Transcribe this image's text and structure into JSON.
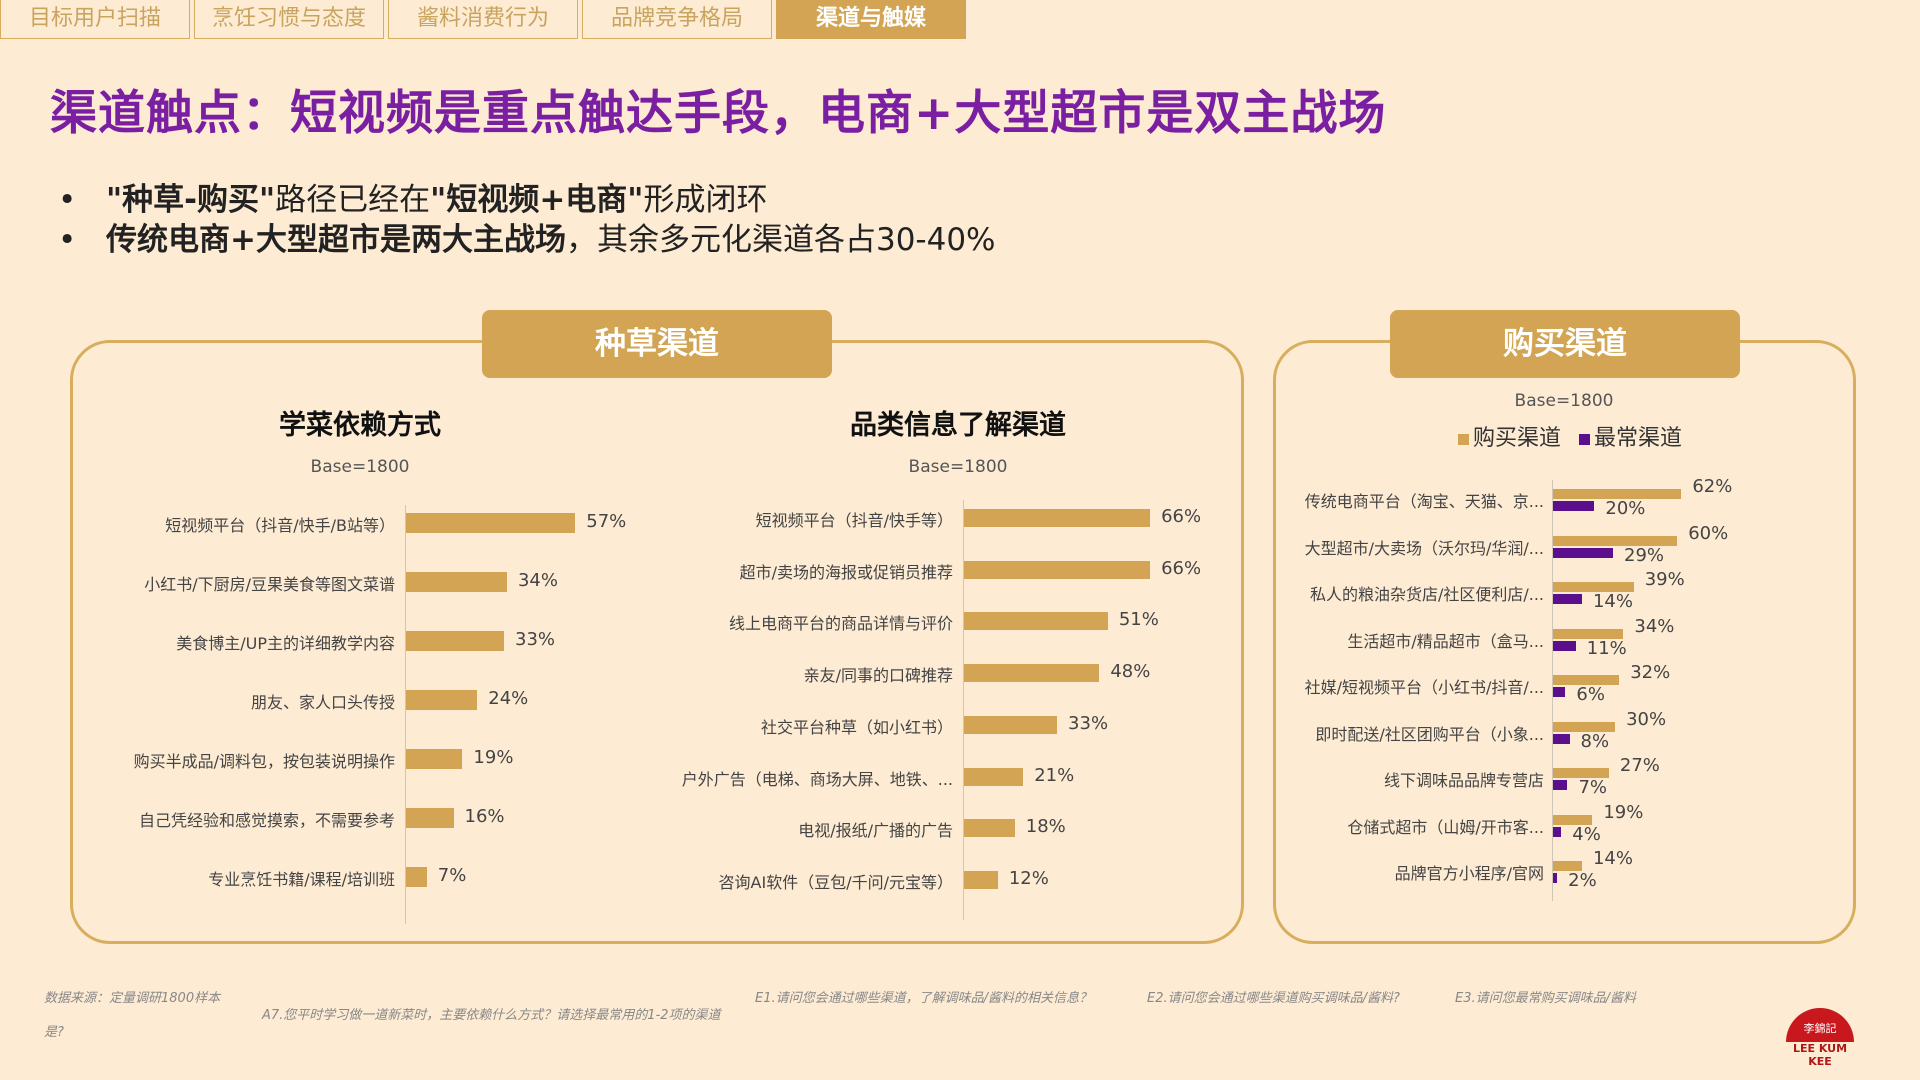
{
  "tabs": [
    {
      "label": "目标用户扫描",
      "active": false
    },
    {
      "label": "烹饪习惯与态度",
      "active": false
    },
    {
      "label": "酱料消费行为",
      "active": false
    },
    {
      "label": "品牌竞争格局",
      "active": false
    },
    {
      "label": "渠道与触媒",
      "active": true
    }
  ],
  "title": "渠道触点：短视频是重点触达手段，电商+大型超市是双主战场",
  "bullets": [
    {
      "bold1": "\"种草-购买\"",
      "normal1": "路径已经在",
      "bold2": "\"短视频+电商\"",
      "normal2": "形成闭环"
    },
    {
      "bold1": "传统电商+大型超市是两大主战场",
      "normal1": "，其余多元化渠道各占30-40%",
      "bold2": "",
      "normal2": ""
    }
  ],
  "panels": {
    "left_badge": "种草渠道",
    "right_badge": "购买渠道"
  },
  "colors": {
    "gold": "#D2A453",
    "purple": "#5B0F8C",
    "title_purple": "#7B1FA2"
  },
  "chart_data": [
    {
      "type": "bar",
      "orientation": "horizontal",
      "title": "学菜依赖方式",
      "base": "Base=1800",
      "categories": [
        "短视频平台（抖音/快手/B站等）",
        "小红书/下厨房/豆果美食等图文菜谱",
        "美食博主/UP主的详细教学内容",
        "朋友、家人口头传授",
        "购买半成品/调料包，按包装说明操作",
        "自己凭经验和感觉摸索，不需要参考",
        "专业烹饪书籍/课程/培训班"
      ],
      "values": [
        57,
        34,
        33,
        24,
        19,
        16,
        7
      ],
      "labels": [
        "57%",
        "34%",
        "33%",
        "24%",
        "19%",
        "16%",
        "7%"
      ],
      "xlim": [
        0,
        100
      ]
    },
    {
      "type": "bar",
      "orientation": "horizontal",
      "title": "品类信息了解渠道",
      "base": "Base=1800",
      "categories": [
        "短视频平台（抖音/快手等）",
        "超市/卖场的海报或促销员推荐",
        "线上电商平台的商品详情与评价",
        "亲友/同事的口碑推荐",
        "社交平台种草（如小红书）",
        "户外广告（电梯、商场大屏、地铁、...",
        "电视/报纸/广播的广告",
        "咨询AI软件（豆包/千问/元宝等）"
      ],
      "values": [
        66,
        66,
        51,
        48,
        33,
        21,
        18,
        12
      ],
      "labels": [
        "66%",
        "66%",
        "51%",
        "48%",
        "33%",
        "21%",
        "18%",
        "12%"
      ],
      "xlim": [
        0,
        100
      ]
    },
    {
      "type": "bar",
      "orientation": "horizontal",
      "base": "Base=1800",
      "categories": [
        "传统电商平台（淘宝、天猫、京...",
        "大型超市/大卖场（沃尔玛/华润/...",
        "私人的粮油杂货店/社区便利店/...",
        "生活超市/精品超市（盒马...",
        "社媒/短视频平台（小红书/抖音/...",
        "即时配送/社区团购平台（小象...",
        "线下调味品品牌专营店",
        "仓储式超市（山姆/开市客...",
        "品牌官方小程序/官网"
      ],
      "series": [
        {
          "name": "购买渠道",
          "color": "#D2A453",
          "values": [
            62,
            60,
            39,
            34,
            32,
            30,
            27,
            19,
            14
          ],
          "labels": [
            "62%",
            "60%",
            "39%",
            "34%",
            "32%",
            "30%",
            "27%",
            "19%",
            "14%"
          ]
        },
        {
          "name": "最常渠道",
          "color": "#5B0F8C",
          "values": [
            20,
            29,
            14,
            11,
            6,
            8,
            7,
            4,
            2
          ],
          "labels": [
            "20%",
            "29%",
            "14%",
            "11%",
            "6%",
            "8%",
            "7%",
            "4%",
            "2%"
          ]
        }
      ],
      "xlim": [
        0,
        100
      ]
    }
  ],
  "footnotes": {
    "source": "数据来源：定量调研1800样本",
    "a7": "A7.您平时学习做一道新菜时，主要依赖什么方式？请选择最常用的1-2项的渠道是?",
    "e1": "E1.请问您会通过哪些渠道，了解调味品/酱料的相关信息？",
    "e2": "E2.请问您会通过哪些渠道购买调味品/酱料?",
    "e3": "E3.请问您最常购买调味品/酱料"
  },
  "logo": {
    "chinese": "李錦記",
    "english": "LEE KUM KEE"
  }
}
